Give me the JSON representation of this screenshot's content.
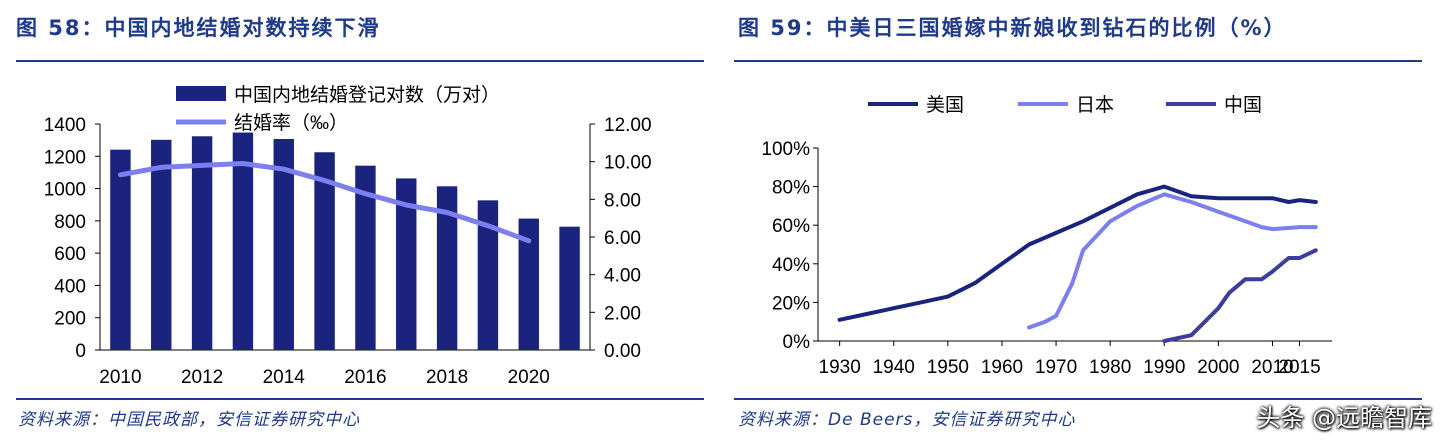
{
  "chart_data": [
    {
      "type": "bar",
      "figure_label": "图 58：中国内地结婚对数持续下滑",
      "categories": [
        "2010",
        "2011",
        "2012",
        "2013",
        "2014",
        "2015",
        "2016",
        "2017",
        "2018",
        "2019",
        "2020",
        "2021"
      ],
      "xtick_labels": [
        "2010",
        "2012",
        "2014",
        "2016",
        "2018",
        "2020"
      ],
      "series": [
        {
          "name": "中国内地结婚登记对数（万对）",
          "type": "bar",
          "axis": "left",
          "color": "#1a237e",
          "values": [
            1241,
            1302,
            1324,
            1347,
            1307,
            1225,
            1142,
            1063,
            1014,
            927,
            814,
            764
          ]
        },
        {
          "name": "结婚率（‰）",
          "type": "line",
          "axis": "right",
          "color": "#7b7ff0",
          "values": [
            9.3,
            9.7,
            9.8,
            9.9,
            9.6,
            9.0,
            8.3,
            7.7,
            7.3,
            6.6,
            5.8,
            null
          ]
        }
      ],
      "y_left": {
        "min": 0,
        "max": 1400,
        "ticks": [
          "0",
          "200",
          "400",
          "600",
          "800",
          "1000",
          "1200",
          "1400"
        ]
      },
      "y_right": {
        "min": 0,
        "max": 12,
        "ticks": [
          "0.00",
          "2.00",
          "4.00",
          "6.00",
          "8.00",
          "10.00",
          "12.00"
        ]
      },
      "legend": "top",
      "grid": false,
      "source": "资料来源：中国民政部，安信证券研究中心"
    },
    {
      "type": "line",
      "figure_label": "图 59：中美日三国婚嫁中新娘收到钻石的比例（%）",
      "xtick_labels": [
        "1930",
        "1940",
        "1950",
        "1960",
        "1970",
        "1980",
        "1990",
        "2000",
        "2010",
        "2015"
      ],
      "xlim": [
        1926,
        2021
      ],
      "y": {
        "min": 0,
        "max": 100,
        "ticks": [
          "0%",
          "20%",
          "40%",
          "60%",
          "80%",
          "100%"
        ]
      },
      "series": [
        {
          "name": "美国",
          "color": "#1a237e",
          "x": [
            1930,
            1935,
            1940,
            1945,
            1950,
            1955,
            1960,
            1965,
            1970,
            1975,
            1980,
            1985,
            1990,
            1993,
            1995,
            2000,
            2005,
            2010,
            2013,
            2015,
            2018
          ],
          "y": [
            11,
            14,
            17,
            20,
            23,
            30,
            40,
            50,
            56,
            62,
            69,
            76,
            80,
            77,
            75,
            74,
            74,
            74,
            72,
            73,
            72
          ]
        },
        {
          "name": "日本",
          "color": "#7b7ff0",
          "x": [
            1965,
            1968,
            1970,
            1973,
            1975,
            1980,
            1985,
            1990,
            1995,
            2000,
            2005,
            2008,
            2010,
            2015,
            2018
          ],
          "y": [
            7,
            10,
            13,
            30,
            47,
            62,
            70,
            76,
            72,
            67,
            62,
            59,
            58,
            59,
            59
          ]
        },
        {
          "name": "中国",
          "color": "#3d3d9e",
          "x": [
            1990,
            1995,
            2000,
            2002,
            2005,
            2008,
            2010,
            2013,
            2015,
            2018
          ],
          "y": [
            0,
            3,
            17,
            25,
            32,
            32,
            36,
            43,
            43,
            47
          ]
        }
      ],
      "legend": "top",
      "grid": false,
      "source": "资料来源：De Beers，安信证券研究中心"
    }
  ],
  "watermark": "头条 @远瞻智库"
}
